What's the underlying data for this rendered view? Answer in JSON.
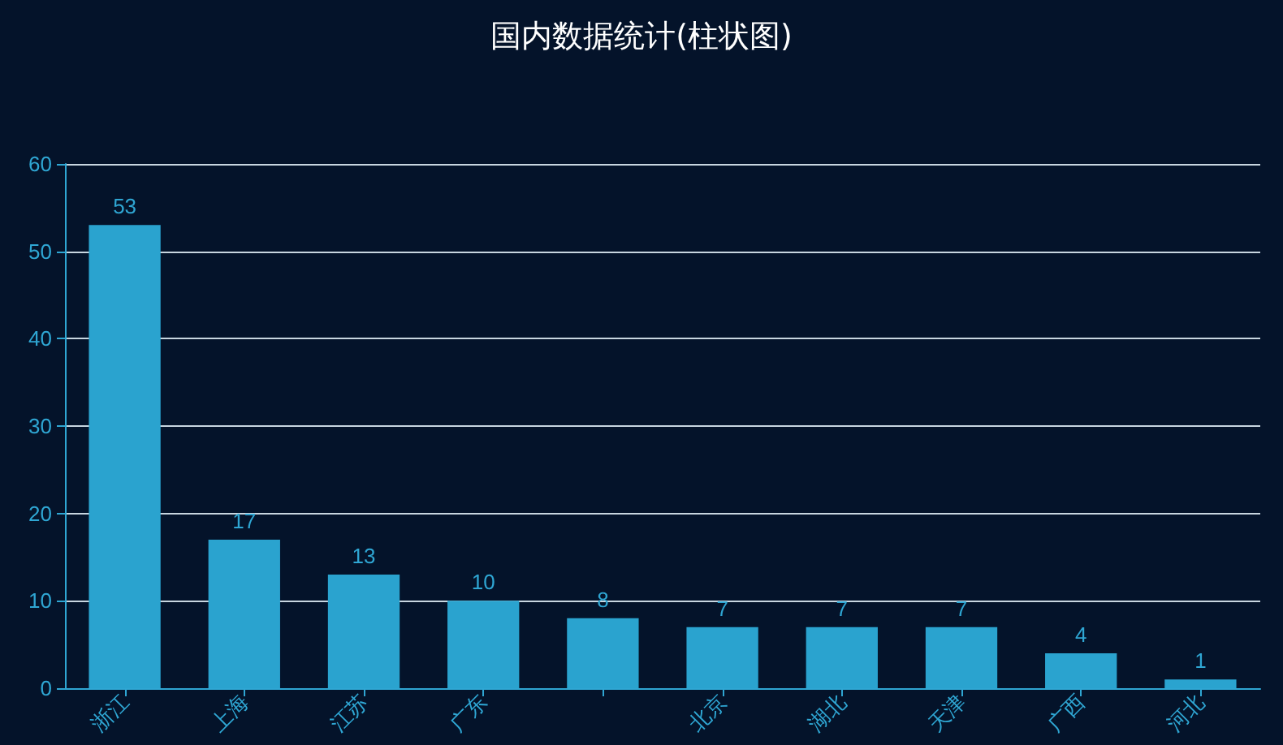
{
  "chart_data": {
    "type": "bar",
    "title": "国内数据统计(柱状图)",
    "categories": [
      "浙江",
      "上海",
      "江苏",
      "广东",
      null,
      "北京",
      "湖北",
      "天津",
      "广西",
      "河北"
    ],
    "values": [
      53,
      17,
      13,
      10,
      8,
      7,
      7,
      7,
      4,
      1
    ],
    "color": "#2aa3cf",
    "ylim": [
      0,
      60
    ],
    "yticks": [
      0,
      10,
      20,
      30,
      40,
      50,
      60
    ],
    "grid": "y",
    "data_labels": true
  }
}
